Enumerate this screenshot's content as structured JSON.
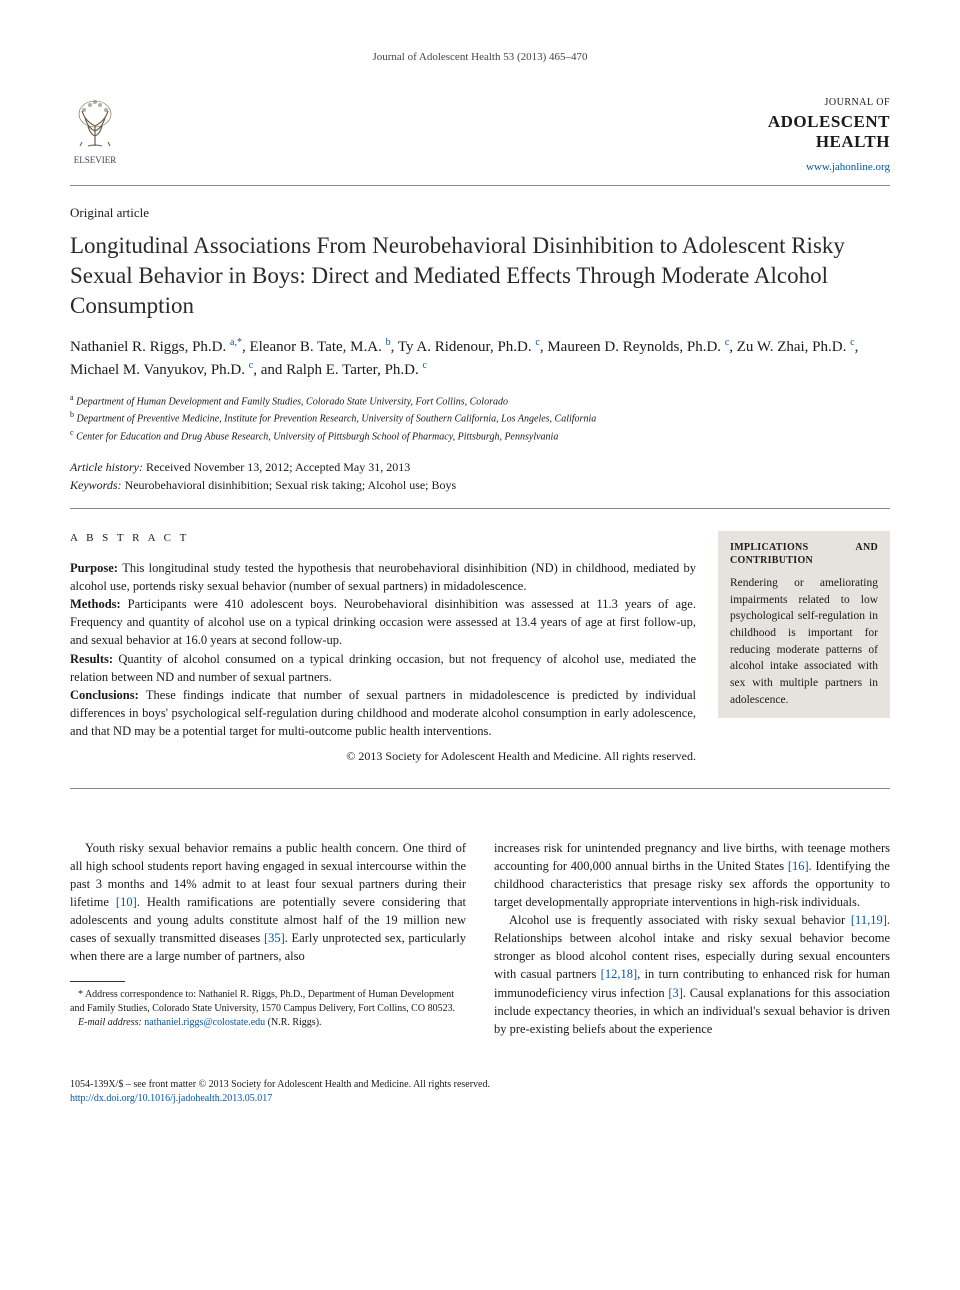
{
  "running_head": "Journal of Adolescent Health 53 (2013) 465–470",
  "publisher_logo_label": "ELSEVIER",
  "journal": {
    "prefix": "JOURNAL OF",
    "name_line1": "ADOLESCENT",
    "name_line2": "HEALTH",
    "url": "www.jahonline.org"
  },
  "article_type": "Original article",
  "title": "Longitudinal Associations From Neurobehavioral Disinhibition to Adolescent Risky Sexual Behavior in Boys: Direct and Mediated Effects Through Moderate Alcohol Consumption",
  "authors": [
    {
      "name": "Nathaniel R. Riggs, Ph.D.",
      "marks": "a,*"
    },
    {
      "name": "Eleanor B. Tate, M.A.",
      "marks": "b"
    },
    {
      "name": "Ty A. Ridenour, Ph.D.",
      "marks": "c"
    },
    {
      "name": "Maureen D. Reynolds, Ph.D.",
      "marks": "c"
    },
    {
      "name": "Zu W. Zhai, Ph.D.",
      "marks": "c"
    },
    {
      "name": "Michael M. Vanyukov, Ph.D.",
      "marks": "c"
    },
    {
      "name": "and Ralph E. Tarter, Ph.D.",
      "marks": "c"
    }
  ],
  "affiliations": [
    {
      "label": "a",
      "text": "Department of Human Development and Family Studies, Colorado State University, Fort Collins, Colorado"
    },
    {
      "label": "b",
      "text": "Department of Preventive Medicine, Institute for Prevention Research, University of Southern California, Los Angeles, California"
    },
    {
      "label": "c",
      "text": "Center for Education and Drug Abuse Research, University of Pittsburgh School of Pharmacy, Pittsburgh, Pennsylvania"
    }
  ],
  "history_label": "Article history:",
  "history_text": " Received November 13, 2012; Accepted May 31, 2013",
  "keywords_label": "Keywords:",
  "keywords_text": " Neurobehavioral disinhibition; Sexual risk taking; Alcohol use; Boys",
  "abstract_head": "A B S T R A C T",
  "abstract": {
    "purpose_label": "Purpose: ",
    "purpose": "This longitudinal study tested the hypothesis that neurobehavioral disinhibition (ND) in childhood, mediated by alcohol use, portends risky sexual behavior (number of sexual partners) in midadolescence.",
    "methods_label": "Methods: ",
    "methods": "Participants were 410 adolescent boys. Neurobehavioral disinhibition was assessed at 11.3 years of age. Frequency and quantity of alcohol use on a typical drinking occasion were assessed at 13.4 years of age at first follow-up, and sexual behavior at 16.0 years at second follow-up.",
    "results_label": "Results: ",
    "results": "Quantity of alcohol consumed on a typical drinking occasion, but not frequency of alcohol use, mediated the relation between ND and number of sexual partners.",
    "conclusions_label": "Conclusions: ",
    "conclusions": "These findings indicate that number of sexual partners in midadolescence is predicted by individual differences in boys' psychological self-regulation during childhood and moderate alcohol consumption in early adolescence, and that ND may be a potential target for multi-outcome public health interventions.",
    "copyright": "© 2013 Society for Adolescent Health and Medicine. All rights reserved."
  },
  "sidebar": {
    "head": "IMPLICATIONS AND CONTRIBUTION",
    "body": "Rendering or ameliorating impairments related to low psychological self-regulation in childhood is important for reducing moderate patterns of alcohol intake associated with sex with multiple partners in adolescence."
  },
  "body": {
    "p1a": "Youth risky sexual behavior remains a public health concern. One third of all high school students report having engaged in sexual intercourse within the past 3 months and 14% admit to at least four sexual partners during their lifetime ",
    "c1": "[10]",
    "p1b": ". Health ramifications are potentially severe considering that adolescents and young adults constitute almost half of the 19 million new cases of sexually transmitted diseases ",
    "c2": "[35]",
    "p1c": ". Early unprotected sex, particularly when there are a large number of partners, also",
    "p2a": "increases risk for unintended pregnancy and live births, with teenage mothers accounting for 400,000 annual births in the United States ",
    "c3": "[16]",
    "p2b": ". Identifying the childhood characteristics that presage risky sex affords the opportunity to target developmentally appropriate interventions in high-risk individuals.",
    "p3a": "Alcohol use is frequently associated with risky sexual behavior ",
    "c4": "[11,19]",
    "p3b": ". Relationships between alcohol intake and risky sexual behavior become stronger as blood alcohol content rises, especially during sexual encounters with casual partners ",
    "c5": "[12,18]",
    "p3c": ", in turn contributing to enhanced risk for human immunodeficiency virus infection ",
    "c6": "[3]",
    "p3d": ". Causal explanations for this association include expectancy theories, in which an individual's sexual behavior is driven by pre-existing beliefs about the experience"
  },
  "footnotes": {
    "corr": "* Address correspondence to: Nathaniel R. Riggs, Ph.D., Department of Human Development and Family Studies, Colorado State University, 1570 Campus Delivery, Fort Collins, CO 80523.",
    "email_label": "E-mail address: ",
    "email": "nathaniel.riggs@colostate.edu",
    "email_who": " (N.R. Riggs)."
  },
  "footer": {
    "line1": "1054-139X/$ – see front matter © 2013 Society for Adolescent Health and Medicine. All rights reserved.",
    "doi": "http://dx.doi.org/10.1016/j.jadohealth.2013.05.017"
  },
  "colors": {
    "link": "#0055aa",
    "sidebar_bg": "#e6e3de",
    "rule": "#888888"
  }
}
